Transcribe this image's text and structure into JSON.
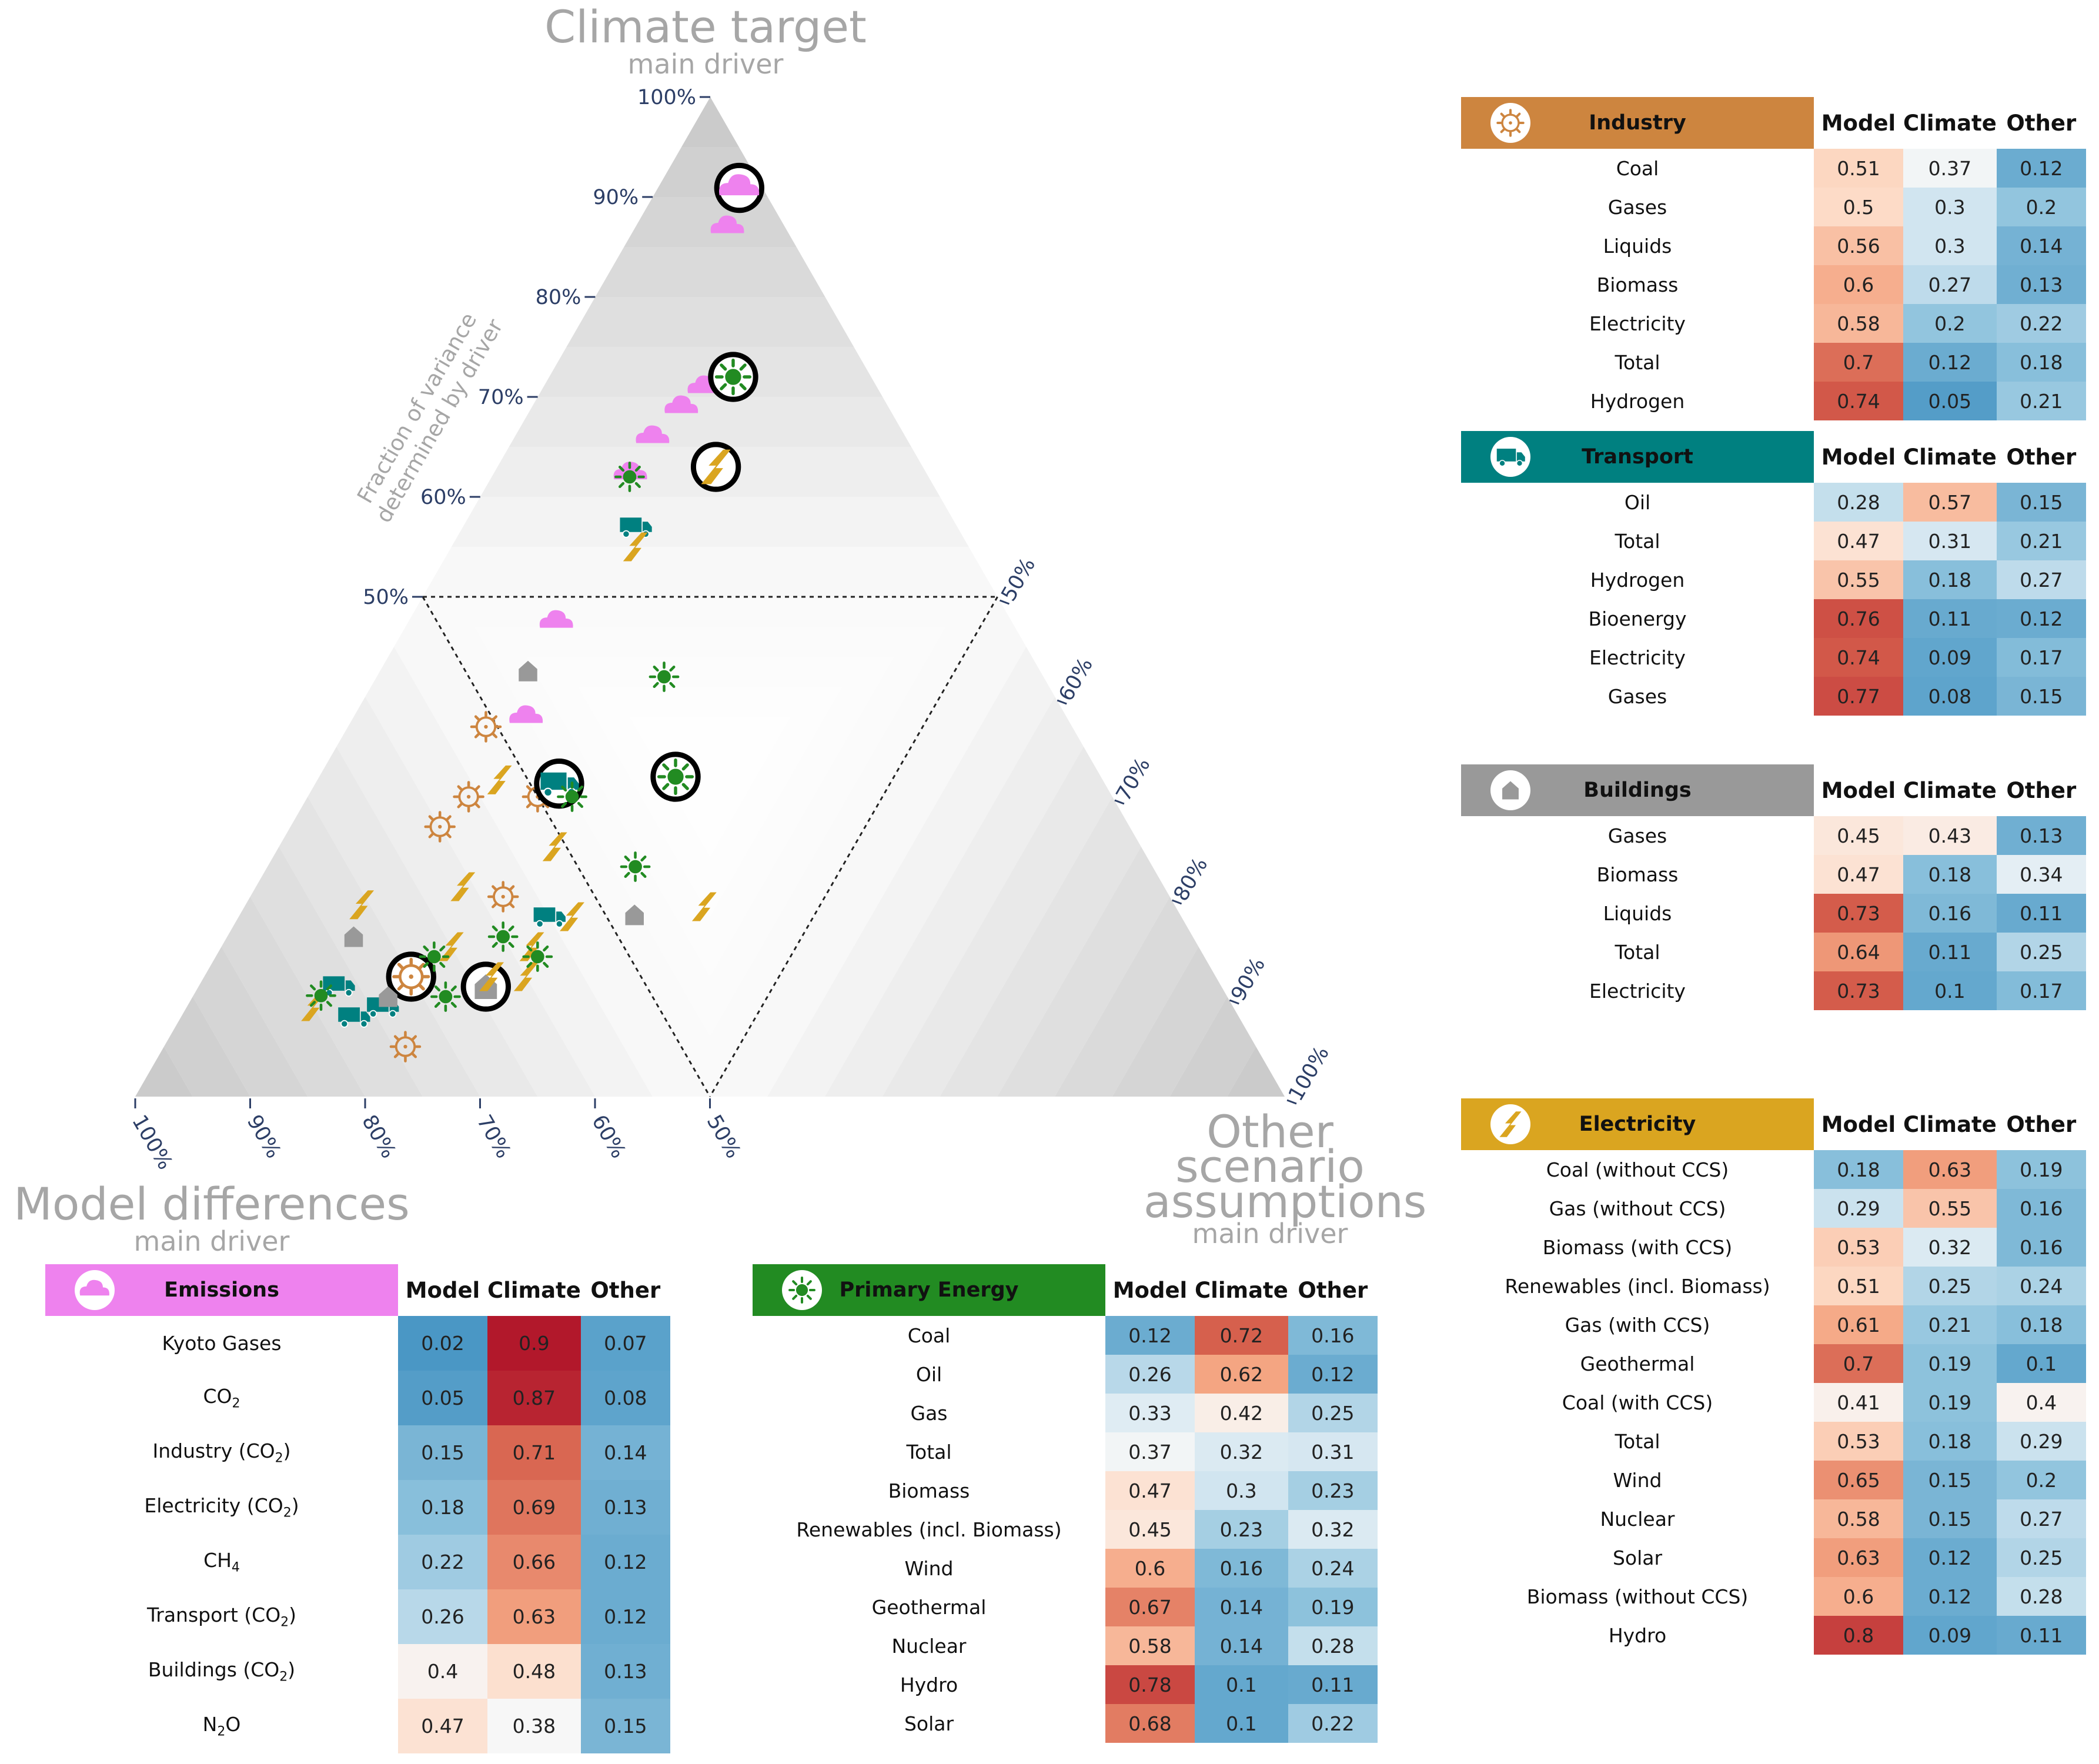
{
  "chart_data": {
    "type": "ternary",
    "corners": {
      "top": {
        "label": "Climate target",
        "sub": "main driver"
      },
      "left": {
        "label": "Model differences",
        "sub": "main driver"
      },
      "right": {
        "label": "Other scenario assumptions",
        "sub": "main driver"
      }
    },
    "axis_title": "Fraction of variance determined by driver",
    "ticks": [
      "50%",
      "60%",
      "70%",
      "80%",
      "90%",
      "100%"
    ],
    "colors": {
      "Emissions": "#ee82ee",
      "Industry": "#cd853f",
      "Transport": "#008080",
      "Buildings": "#999999",
      "Electricity": "#daa520",
      "Primary Energy": "#228b22"
    },
    "tables": [
      {
        "name": "Industry",
        "icon": "factory-gear-icon",
        "color": "#cd853f",
        "cols": [
          "Model",
          "Climate",
          "Other"
        ],
        "rows": [
          {
            "label": "Coal",
            "values": [
              0.51,
              0.37,
              0.12
            ]
          },
          {
            "label": "Gases",
            "values": [
              0.5,
              0.3,
              0.2
            ]
          },
          {
            "label": "Liquids",
            "values": [
              0.56,
              0.3,
              0.14
            ]
          },
          {
            "label": "Biomass",
            "values": [
              0.6,
              0.27,
              0.13
            ]
          },
          {
            "label": "Electricity",
            "values": [
              0.58,
              0.2,
              0.22
            ]
          },
          {
            "label": "Total",
            "values": [
              0.7,
              0.12,
              0.18
            ],
            "highlight": true
          },
          {
            "label": "Hydrogen",
            "values": [
              0.74,
              0.05,
              0.21
            ]
          }
        ]
      },
      {
        "name": "Transport",
        "icon": "truck-icon",
        "color": "#008080",
        "cols": [
          "Model",
          "Climate",
          "Other"
        ],
        "rows": [
          {
            "label": "Oil",
            "values": [
              0.28,
              0.57,
              0.15
            ]
          },
          {
            "label": "Total",
            "values": [
              0.47,
              0.31,
              0.21
            ],
            "highlight": true
          },
          {
            "label": "Hydrogen",
            "values": [
              0.55,
              0.18,
              0.27
            ]
          },
          {
            "label": "Bioenergy",
            "values": [
              0.76,
              0.11,
              0.12
            ]
          },
          {
            "label": "Electricity",
            "values": [
              0.74,
              0.09,
              0.17
            ]
          },
          {
            "label": "Gases",
            "values": [
              0.77,
              0.08,
              0.15
            ]
          }
        ]
      },
      {
        "name": "Buildings",
        "icon": "house-icon",
        "color": "#999999",
        "cols": [
          "Model",
          "Climate",
          "Other"
        ],
        "rows": [
          {
            "label": "Gases",
            "values": [
              0.45,
              0.43,
              0.13
            ]
          },
          {
            "label": "Biomass",
            "values": [
              0.47,
              0.18,
              0.34
            ]
          },
          {
            "label": "Liquids",
            "values": [
              0.73,
              0.16,
              0.11
            ]
          },
          {
            "label": "Total",
            "values": [
              0.64,
              0.11,
              0.25
            ],
            "highlight": true
          },
          {
            "label": "Electricity",
            "values": [
              0.73,
              0.1,
              0.17
            ]
          }
        ]
      },
      {
        "name": "Electricity",
        "icon": "lightning-icon",
        "color": "#daa520",
        "cols": [
          "Model",
          "Climate",
          "Other"
        ],
        "rows": [
          {
            "label": "Coal (without CCS)",
            "values": [
              0.18,
              0.63,
              0.19
            ],
            "highlight": true
          },
          {
            "label": "Gas (without CCS)",
            "values": [
              0.29,
              0.55,
              0.16
            ]
          },
          {
            "label": "Biomass (with CCS)",
            "values": [
              0.53,
              0.32,
              0.16
            ]
          },
          {
            "label": "Renewables (incl. Biomass)",
            "values": [
              0.51,
              0.25,
              0.24
            ]
          },
          {
            "label": "Gas (with CCS)",
            "values": [
              0.61,
              0.21,
              0.18
            ]
          },
          {
            "label": "Geothermal",
            "values": [
              0.7,
              0.19,
              0.1
            ]
          },
          {
            "label": "Coal (with CCS)",
            "values": [
              0.41,
              0.19,
              0.4
            ]
          },
          {
            "label": "Total",
            "values": [
              0.53,
              0.18,
              0.29
            ]
          },
          {
            "label": "Wind",
            "values": [
              0.65,
              0.15,
              0.2
            ]
          },
          {
            "label": "Nuclear",
            "values": [
              0.58,
              0.15,
              0.27
            ]
          },
          {
            "label": "Solar",
            "values": [
              0.63,
              0.12,
              0.25
            ]
          },
          {
            "label": "Biomass (without CCS)",
            "values": [
              0.6,
              0.12,
              0.28
            ]
          },
          {
            "label": "Hydro",
            "values": [
              0.8,
              0.09,
              0.11
            ]
          }
        ]
      },
      {
        "name": "Emissions",
        "icon": "cloud-icon",
        "color": "#ee82ee",
        "cols": [
          "Model",
          "Climate",
          "Other"
        ],
        "rows": [
          {
            "label": "Kyoto Gases",
            "values": [
              0.02,
              0.9,
              0.07
            ],
            "highlight": true
          },
          {
            "label": "CO",
            "sub": "2",
            "values": [
              0.05,
              0.87,
              0.08
            ]
          },
          {
            "label": "Industry (CO",
            "sub": "2",
            "after": ")",
            "values": [
              0.15,
              0.71,
              0.14
            ]
          },
          {
            "label": "Electricity (CO",
            "sub": "2",
            "after": ")",
            "values": [
              0.18,
              0.69,
              0.13
            ]
          },
          {
            "label": "CH",
            "sub": "4",
            "values": [
              0.22,
              0.66,
              0.12
            ]
          },
          {
            "label": "Transport (CO",
            "sub": "2",
            "after": ")",
            "values": [
              0.26,
              0.63,
              0.12
            ]
          },
          {
            "label": "Buildings (CO",
            "sub": "2",
            "after": ")",
            "values": [
              0.4,
              0.48,
              0.13
            ]
          },
          {
            "label": "N",
            "sub": "2",
            "after": "O",
            "values": [
              0.47,
              0.38,
              0.15
            ]
          }
        ]
      },
      {
        "name": "Primary Energy",
        "icon": "sun-icon",
        "color": "#228b22",
        "cols": [
          "Model",
          "Climate",
          "Other"
        ],
        "rows": [
          {
            "label": "Coal",
            "values": [
              0.12,
              0.72,
              0.16
            ],
            "highlight": true
          },
          {
            "label": "Oil",
            "values": [
              0.26,
              0.62,
              0.12
            ]
          },
          {
            "label": "Gas",
            "values": [
              0.33,
              0.42,
              0.25
            ]
          },
          {
            "label": "Total",
            "values": [
              0.37,
              0.32,
              0.31
            ],
            "highlight": true
          },
          {
            "label": "Biomass",
            "values": [
              0.47,
              0.3,
              0.23
            ]
          },
          {
            "label": "Renewables (incl. Biomass)",
            "values": [
              0.45,
              0.23,
              0.32
            ]
          },
          {
            "label": "Wind",
            "values": [
              0.6,
              0.16,
              0.24
            ]
          },
          {
            "label": "Geothermal",
            "values": [
              0.67,
              0.14,
              0.19
            ]
          },
          {
            "label": "Nuclear",
            "values": [
              0.58,
              0.14,
              0.28
            ]
          },
          {
            "label": "Hydro",
            "values": [
              0.78,
              0.1,
              0.11
            ]
          },
          {
            "label": "Solar",
            "values": [
              0.68,
              0.1,
              0.22
            ]
          }
        ]
      }
    ]
  }
}
